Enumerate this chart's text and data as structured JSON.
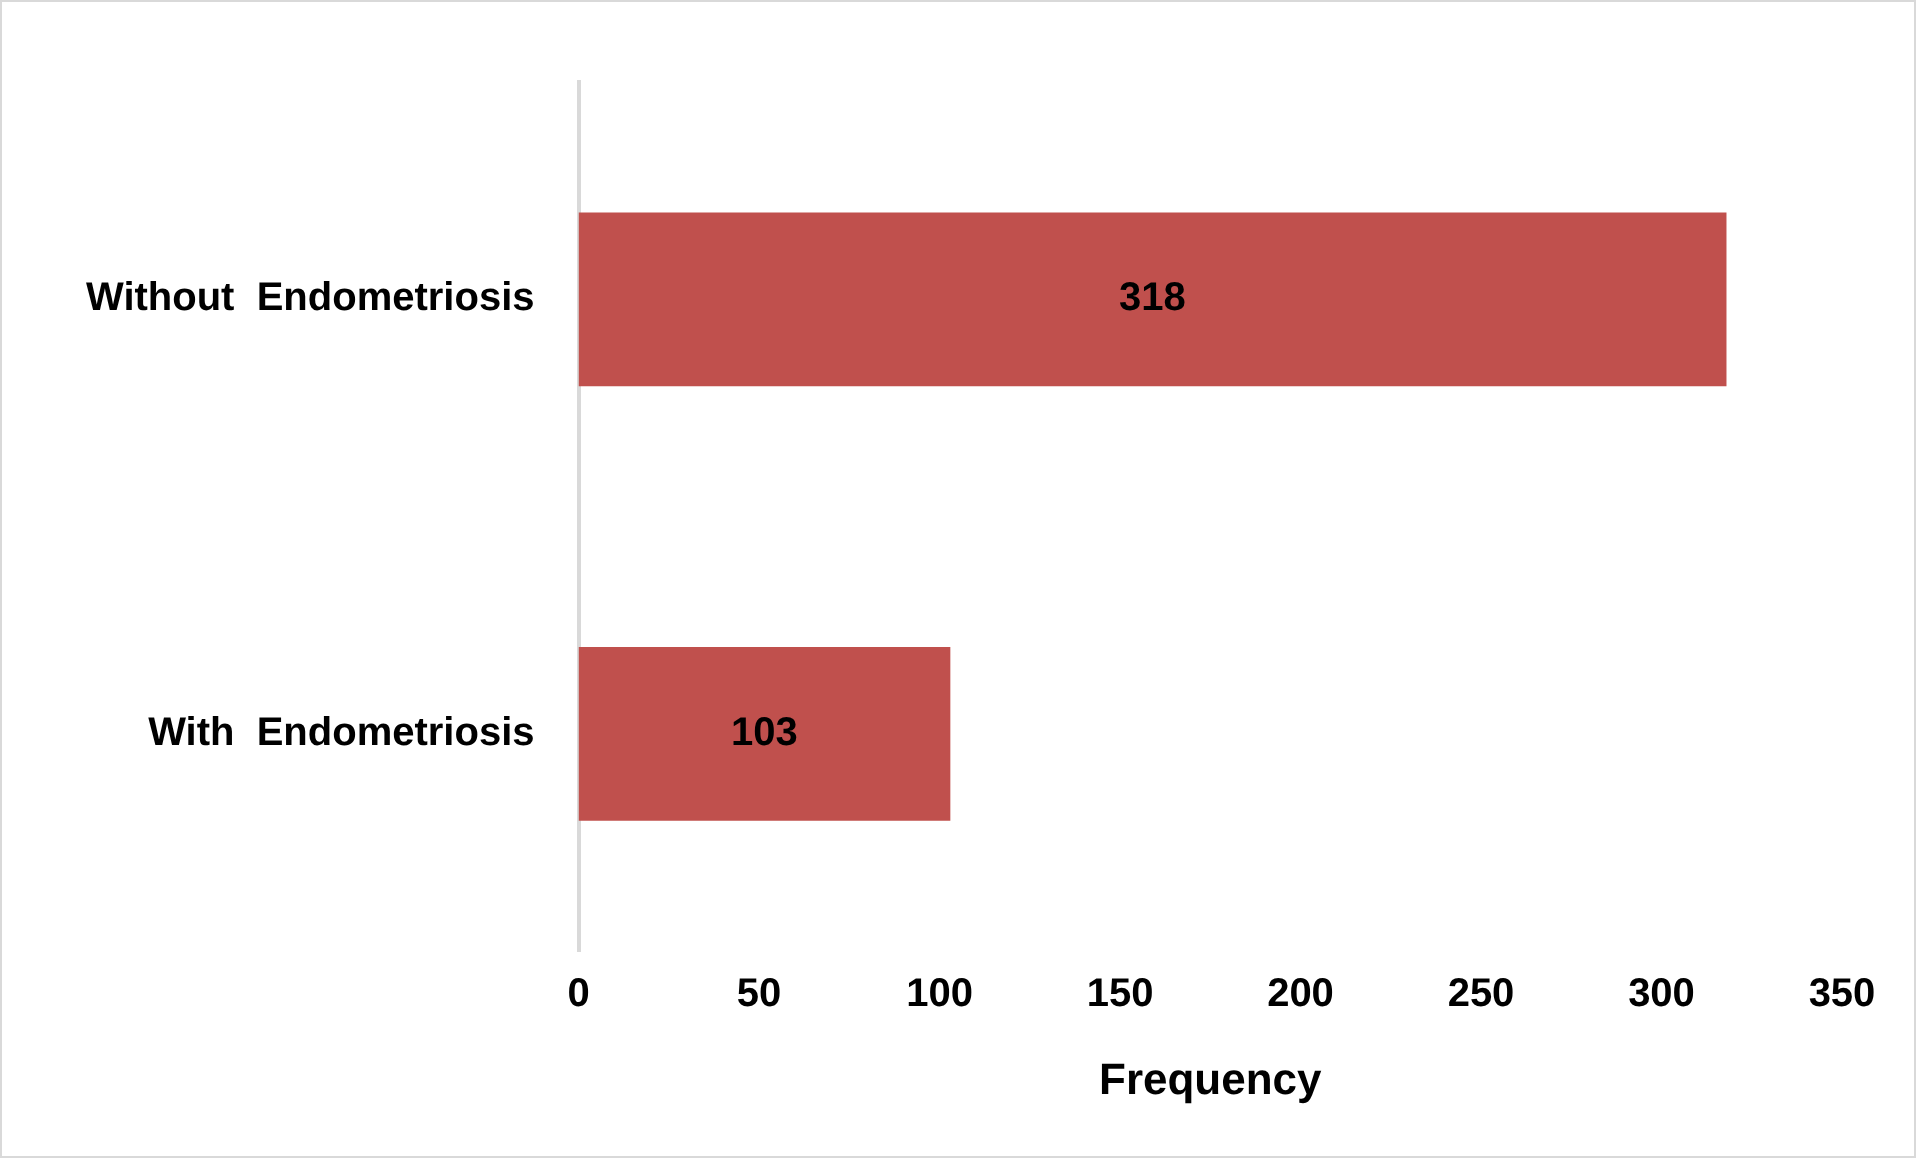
{
  "chart_data": {
    "type": "bar",
    "orientation": "horizontal",
    "categories": [
      "Without  Endometriosis",
      "With  Endometriosis"
    ],
    "values": [
      318,
      103
    ],
    "color": "#c0504d",
    "xlabel": "Frequency",
    "xlim": [
      0,
      350
    ],
    "xticks": [
      0,
      50,
      100,
      150,
      200,
      250,
      300,
      350
    ],
    "data_labels": true,
    "grid": false,
    "legend": false
  }
}
